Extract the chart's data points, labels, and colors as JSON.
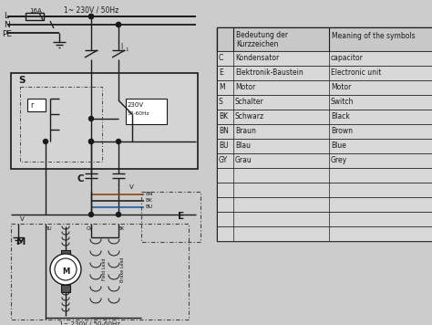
{
  "bg_color": "#cccccc",
  "wire_color": "#1a1a1a",
  "dashed_color": "#444444",
  "table_rows": [
    [
      "C",
      "Kondensator",
      "capacitor"
    ],
    [
      "E",
      "Elektronik-Baustein",
      "Electronic unit"
    ],
    [
      "M",
      "Motor",
      "Motor"
    ],
    [
      "S",
      "Schalter",
      "Switch"
    ],
    [
      "BK",
      "Schwarz",
      "Black"
    ],
    [
      "BN",
      "Braun",
      "Brown"
    ],
    [
      "BU",
      "Blau",
      "Blue"
    ],
    [
      "GY",
      "Grau",
      "Grey"
    ],
    [
      "",
      "",
      ""
    ],
    [
      "",
      "",
      ""
    ],
    [
      "",
      "",
      ""
    ],
    [
      "",
      "",
      ""
    ],
    [
      "",
      "",
      ""
    ]
  ]
}
